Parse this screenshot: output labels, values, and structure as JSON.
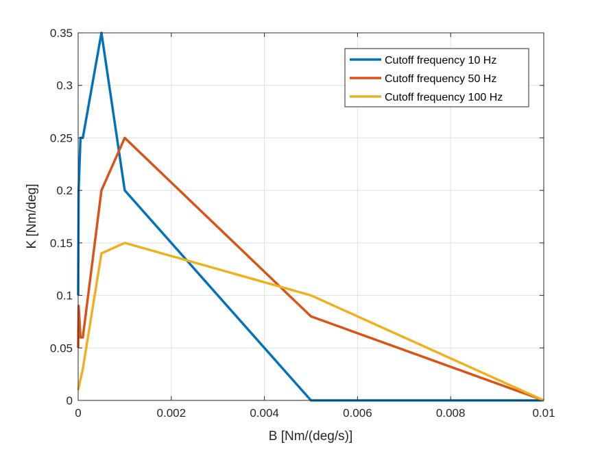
{
  "chart_data": {
    "type": "line",
    "title": "",
    "xlabel": "B [Nm/(deg/s)]",
    "ylabel": "K [Nm/deg]",
    "xlim": [
      0,
      0.01
    ],
    "ylim": [
      0,
      0.35
    ],
    "xticks": [
      0,
      0.002,
      0.004,
      0.006,
      0.008,
      0.01
    ],
    "xtick_labels": [
      "0",
      "0.002",
      "0.004",
      "0.006",
      "0.008",
      "0.01"
    ],
    "yticks": [
      0,
      0.05,
      0.1,
      0.15,
      0.2,
      0.25,
      0.3,
      0.35
    ],
    "ytick_labels": [
      "0",
      "0.05",
      "0.1",
      "0.15",
      "0.2",
      "0.25",
      "0.3",
      "0.35"
    ],
    "grid": true,
    "legend_position": "top-right",
    "series": [
      {
        "name": "Cutoff frequency 10 Hz",
        "color": "#0072BD",
        "x": [
          0,
          1e-05,
          5e-05,
          0.0001,
          0.0005,
          0.001,
          0.005,
          0.01
        ],
        "y": [
          0.1,
          0.2,
          0.25,
          0.25,
          0.35,
          0.2,
          0,
          0
        ]
      },
      {
        "name": "Cutoff frequency 50 Hz",
        "color": "#D95319",
        "x": [
          0,
          1e-05,
          5e-05,
          0.0001,
          0.0005,
          0.001,
          0.005,
          0.01
        ],
        "y": [
          0.05,
          0.09,
          0.06,
          0.06,
          0.2,
          0.25,
          0.08,
          0
        ]
      },
      {
        "name": "Cutoff frequency 100 Hz",
        "color": "#EDB120",
        "x": [
          0,
          0.0001,
          0.0005,
          0.001,
          0.005,
          0.01
        ],
        "y": [
          0.01,
          0.03,
          0.14,
          0.15,
          0.1,
          0
        ]
      }
    ]
  }
}
